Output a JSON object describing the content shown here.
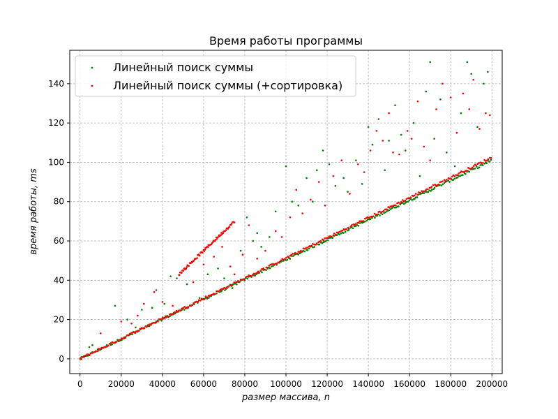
{
  "chart_data": {
    "type": "scatter",
    "title": "Время работы программы",
    "xlabel": "размер массива, n",
    "ylabel": "время работы, ms",
    "xlim": [
      -5000,
      205000
    ],
    "ylim": [
      -7.5,
      157
    ],
    "xticks": [
      0,
      20000,
      40000,
      60000,
      80000,
      100000,
      120000,
      140000,
      160000,
      180000,
      200000
    ],
    "xtick_labels": [
      "0",
      "20000",
      "40000",
      "60000",
      "80000",
      "100000",
      "120000",
      "140000",
      "160000",
      "180000",
      "200000"
    ],
    "yticks": [
      0,
      20,
      40,
      60,
      80,
      100,
      120,
      140
    ],
    "ytick_labels": [
      "0",
      "20",
      "40",
      "60",
      "80",
      "100",
      "120",
      "140"
    ],
    "grid": true,
    "legend_position": "upper-left",
    "series": [
      {
        "name": "Линейный поиск суммы",
        "color": "#008000",
        "marker": "point",
        "trend": {
          "x": [
            0,
            200000
          ],
          "y": [
            0,
            101
          ]
        },
        "outliers": [
          [
            4500,
            6
          ],
          [
            6000,
            7
          ],
          [
            17000,
            27
          ],
          [
            23000,
            20
          ],
          [
            27000,
            16
          ],
          [
            30000,
            25
          ],
          [
            35000,
            26
          ],
          [
            37000,
            35
          ],
          [
            41000,
            28
          ],
          [
            44000,
            42
          ],
          [
            47000,
            41
          ],
          [
            52000,
            38
          ],
          [
            58000,
            31
          ],
          [
            62000,
            43
          ],
          [
            67000,
            46
          ],
          [
            70000,
            41
          ],
          [
            74000,
            36
          ],
          [
            78000,
            55
          ],
          [
            81000,
            72
          ],
          [
            84000,
            60
          ],
          [
            86000,
            64
          ],
          [
            88000,
            57
          ],
          [
            92000,
            62
          ],
          [
            95000,
            75
          ],
          [
            100000,
            98
          ],
          [
            103000,
            80
          ],
          [
            106000,
            78
          ],
          [
            110000,
            92
          ],
          [
            113000,
            80
          ],
          [
            115000,
            96
          ],
          [
            118000,
            106
          ],
          [
            121000,
            99
          ],
          [
            124000,
            88
          ],
          [
            128000,
            92
          ],
          [
            130000,
            85
          ],
          [
            134000,
            101
          ],
          [
            137000,
            89
          ],
          [
            140000,
            118
          ],
          [
            142000,
            109
          ],
          [
            145000,
            122
          ],
          [
            148000,
            96
          ],
          [
            150000,
            111
          ],
          [
            153000,
            129
          ],
          [
            156000,
            114
          ],
          [
            158000,
            106
          ],
          [
            162000,
            120
          ],
          [
            165000,
            93
          ],
          [
            168000,
            136
          ],
          [
            170000,
            151
          ],
          [
            172000,
            112
          ],
          [
            175000,
            132
          ],
          [
            178000,
            105
          ],
          [
            182000,
            98
          ],
          [
            185000,
            125
          ],
          [
            188000,
            151
          ],
          [
            190000,
            145
          ],
          [
            193000,
            118
          ],
          [
            196000,
            140
          ],
          [
            198000,
            146
          ]
        ]
      },
      {
        "name": "Линейный поиск суммы (+сортировка)",
        "color": "#ff0000",
        "marker": "point",
        "trend": {
          "x": [
            0,
            200000
          ],
          "y": [
            0,
            102.5
          ]
        },
        "upper_branch": {
          "x": [
            48000,
            75000
          ],
          "y": [
            43,
            70
          ]
        },
        "outliers": [
          [
            10000,
            13
          ],
          [
            20000,
            19
          ],
          [
            25000,
            18
          ],
          [
            28000,
            22
          ],
          [
            31000,
            28
          ],
          [
            36000,
            34
          ],
          [
            40000,
            29
          ],
          [
            45000,
            27
          ],
          [
            55000,
            39
          ],
          [
            60000,
            48
          ],
          [
            65000,
            52
          ],
          [
            69000,
            57
          ],
          [
            73000,
            47
          ],
          [
            75000,
            43
          ],
          [
            79000,
            53
          ],
          [
            82000,
            68
          ],
          [
            86000,
            51
          ],
          [
            90000,
            55
          ],
          [
            95000,
            65
          ],
          [
            98000,
            62
          ],
          [
            102000,
            72
          ],
          [
            105000,
            86
          ],
          [
            108000,
            74
          ],
          [
            112000,
            81
          ],
          [
            116000,
            90
          ],
          [
            119000,
            78
          ],
          [
            123000,
            93
          ],
          [
            127000,
            101
          ],
          [
            131000,
            84
          ],
          [
            135000,
            99
          ],
          [
            138000,
            95
          ],
          [
            141000,
            106
          ],
          [
            144000,
            116
          ],
          [
            147000,
            111
          ],
          [
            150000,
            125
          ],
          [
            152000,
            105
          ],
          [
            155000,
            104
          ],
          [
            159000,
            116
          ],
          [
            161000,
            112
          ],
          [
            164000,
            131
          ],
          [
            167000,
            108
          ],
          [
            170000,
            101
          ],
          [
            173000,
            127
          ],
          [
            176000,
            140
          ],
          [
            180000,
            133
          ],
          [
            183000,
            115
          ],
          [
            186000,
            135
          ],
          [
            189000,
            127
          ],
          [
            191000,
            142
          ],
          [
            194000,
            117
          ],
          [
            197000,
            125
          ],
          [
            199000,
            124
          ]
        ]
      }
    ]
  }
}
